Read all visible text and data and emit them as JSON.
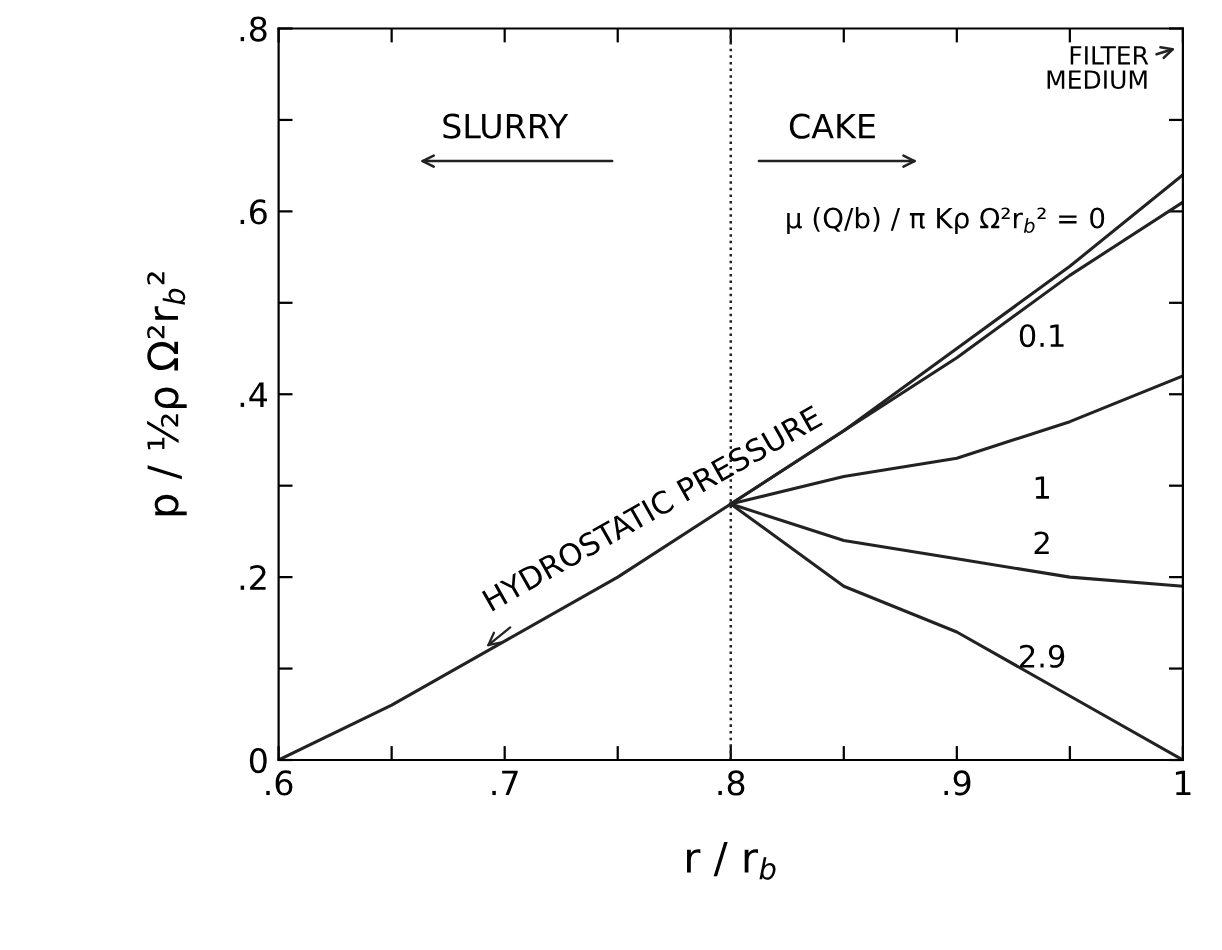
{
  "chart_data": {
    "type": "line",
    "xlabel": "r / r$_{b}$",
    "ylabel": "p / ½ρ Ω²r$_{b}$²",
    "xlim": [
      0.6,
      1.0
    ],
    "ylim": [
      0,
      0.8
    ],
    "xticks": [
      {
        "value": 0.6,
        "label": ".6"
      },
      {
        "value": 0.65,
        "label": null
      },
      {
        "value": 0.7,
        "label": ".7"
      },
      {
        "value": 0.75,
        "label": null
      },
      {
        "value": 0.8,
        "label": ".8"
      },
      {
        "value": 0.85,
        "label": null
      },
      {
        "value": 0.9,
        "label": ".9"
      },
      {
        "value": 0.95,
        "label": null
      },
      1
    ],
    "yticks": [
      0,
      {
        "value": 0.1,
        "label": null
      },
      {
        "value": 0.2,
        "label": ".2"
      },
      {
        "value": 0.3,
        "label": null
      },
      {
        "value": 0.4,
        "label": ".4"
      },
      {
        "value": 0.5,
        "label": null
      },
      {
        "value": 0.6,
        "label": ".6"
      },
      {
        "value": 0.7,
        "label": null
      },
      {
        "value": 0.8,
        "label": ".8"
      }
    ],
    "grid": false,
    "marker": "none",
    "line_style": "solid",
    "series": [
      {
        "color": "#222222",
        "x": [
          0.6,
          0.65,
          0.7,
          0.75,
          0.8,
          0.85,
          0.9,
          0.95,
          1.0
        ],
        "values": [
          0,
          0.06,
          0.13,
          0.2,
          0.28,
          0.36,
          0.45,
          0.54,
          0.64
        ]
      },
      {
        "name": "0.1",
        "color": "#222222",
        "x": [
          0.8,
          0.85,
          0.9,
          0.95,
          1.0
        ],
        "values": [
          0.28,
          0.36,
          0.44,
          0.53,
          0.61
        ]
      },
      {
        "name": "1",
        "color": "#222222",
        "x": [
          0.8,
          0.85,
          0.9,
          0.95,
          1.0
        ],
        "values": [
          0.28,
          0.31,
          0.33,
          0.37,
          0.42
        ]
      },
      {
        "name": "2",
        "color": "#222222",
        "x": [
          0.8,
          0.85,
          0.9,
          0.95,
          1.0
        ],
        "values": [
          0.28,
          0.24,
          0.22,
          0.2,
          0.19
        ]
      },
      {
        "name": "2.9",
        "color": "#222222",
        "x": [
          0.8,
          0.85,
          0.9,
          0.95,
          1.0
        ],
        "values": [
          0.28,
          0.19,
          0.14,
          0.07,
          0
        ]
      }
    ],
    "ref_lines": [
      {
        "axis": "x",
        "value": 0.8,
        "line_style": "dotted",
        "color": "#222222"
      }
    ],
    "annotations": [
      "SLURRY",
      "CAKE",
      "FILTER\nMEDIUM",
      "μ (Q/b) / π Kρ Ω²r$_{b}$² = 0",
      {
        "text": "HYDROSTATIC PRESSURE",
        "x": 0.69,
        "y": 0.12
      }
    ]
  }
}
